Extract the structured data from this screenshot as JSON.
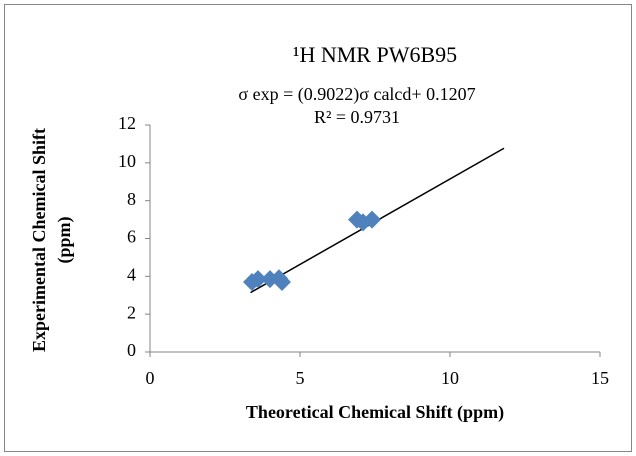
{
  "chart_data": {
    "type": "scatter",
    "title": "¹H NMR PW6B95",
    "annotations": [
      "σ exp = (0.9022)σ calcd+ 0.1207",
      "R² = 0.9731"
    ],
    "x_label": "Theoretical Chemical Shift (ppm)",
    "y_label": [
      "Experimental Chemical Shift",
      "(ppm)"
    ],
    "series": [
      {
        "name": "PW6B95",
        "color": "#4f81bd",
        "x": [
          3.4,
          3.6,
          4.0,
          4.3,
          4.4,
          6.9,
          7.1,
          7.4
        ],
        "values": [
          3.7,
          3.85,
          3.85,
          3.9,
          3.7,
          7.0,
          6.85,
          7.0
        ]
      }
    ],
    "trendline": {
      "color": "#000000",
      "x": [
        3.35,
        11.8
      ],
      "values": [
        3.14,
        10.77
      ]
    },
    "xlim": [
      0,
      15
    ],
    "xticks": [
      0,
      5,
      10,
      15
    ],
    "ylim": [
      0,
      12
    ],
    "yticks": [
      0,
      2,
      4,
      6,
      8,
      10,
      12
    ],
    "grid": false
  }
}
